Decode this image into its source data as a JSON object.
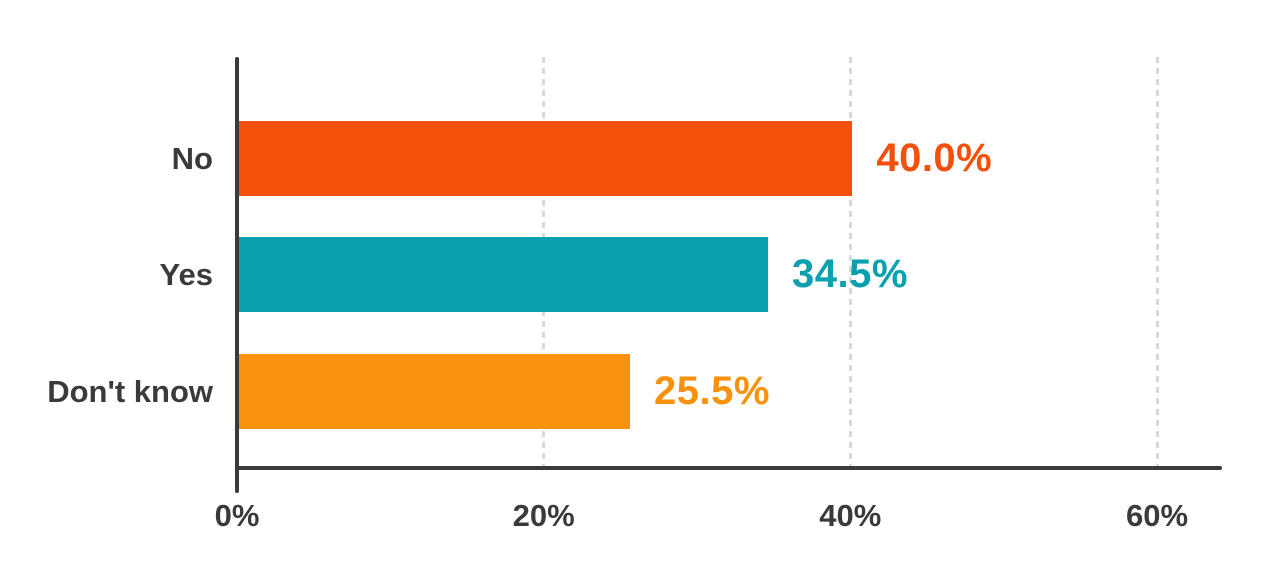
{
  "figure": {
    "background": "#ffffff",
    "axis_color": "#3a3a3a",
    "grid_color": "#d9d9d9",
    "text_color": "#3a3a3a"
  },
  "chart_data": {
    "type": "bar",
    "orientation": "horizontal",
    "title": "",
    "xlabel": "",
    "ylabel": "",
    "categories": [
      "No",
      "Yes",
      "Don't know"
    ],
    "values": [
      40.0,
      34.5,
      25.5
    ],
    "value_labels": [
      "40.0%",
      "34.5%",
      "25.5%"
    ],
    "bar_colors": [
      "#f4500c",
      "#0aa0ae",
      "#f8920d"
    ],
    "xlim": [
      0,
      64
    ],
    "x_ticks": [
      {
        "value": 0,
        "label": "0%"
      },
      {
        "value": 20,
        "label": "20%"
      },
      {
        "value": 40,
        "label": "40%"
      },
      {
        "value": 60,
        "label": "60%"
      }
    ],
    "gridlines": [
      20,
      40,
      60
    ],
    "grid_style": "dashed",
    "legend": "none"
  }
}
